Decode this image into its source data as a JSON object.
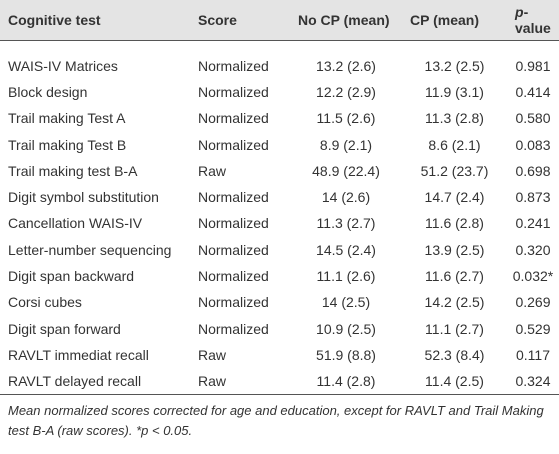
{
  "table": {
    "header": [
      "Cognitive test",
      "Score",
      "No CP (mean)",
      "CP (mean)",
      "p-value"
    ],
    "rows": [
      [
        "WAIS-IV Matrices",
        "Normalized",
        "13.2 (2.6)",
        "13.2 (2.5)",
        "0.981"
      ],
      [
        "Block design",
        "Normalized",
        "12.2 (2.9)",
        "11.9 (3.1)",
        "0.414"
      ],
      [
        "Trail making Test A",
        "Normalized",
        "11.5 (2.6)",
        "11.3 (2.8)",
        "0.580"
      ],
      [
        "Trail making Test B",
        "Normalized",
        "8.9 (2.1)",
        "8.6 (2.1)",
        "0.083"
      ],
      [
        "Trail making test B-A",
        "Raw",
        "48.9 (22.4)",
        "51.2 (23.7)",
        "0.698"
      ],
      [
        "Digit symbol substitution",
        "Normalized",
        "14 (2.6)",
        "14.7 (2.4)",
        "0.873"
      ],
      [
        "Cancellation WAIS-IV",
        "Normalized",
        "11.3 (2.7)",
        "11.6 (2.8)",
        "0.241"
      ],
      [
        "Letter-number sequencing",
        "Normalized",
        "14.5 (2.4)",
        "13.9 (2.5)",
        "0.320"
      ],
      [
        "Digit span backward",
        "Normalized",
        "11.1 (2.6)",
        "11.6 (2.7)",
        "0.032*"
      ],
      [
        "Corsi cubes",
        "Normalized",
        "14 (2.5)",
        "14.2 (2.5)",
        "0.269"
      ],
      [
        "Digit span forward",
        "Normalized",
        "10.9 (2.5)",
        "11.1 (2.7)",
        "0.529"
      ],
      [
        "RAVLT immediat recall",
        "Raw",
        "51.9 (8.8)",
        "52.3 (8.4)",
        "0.117"
      ],
      [
        "RAVLT delayed recall",
        "Raw",
        "11.4 (2.8)",
        "11.4 (2.5)",
        "0.324"
      ]
    ]
  },
  "footnote": "Mean normalized scores corrected for age and education, except for RAVLT and Trail Making test B-A (raw scores). *p < 0.05."
}
